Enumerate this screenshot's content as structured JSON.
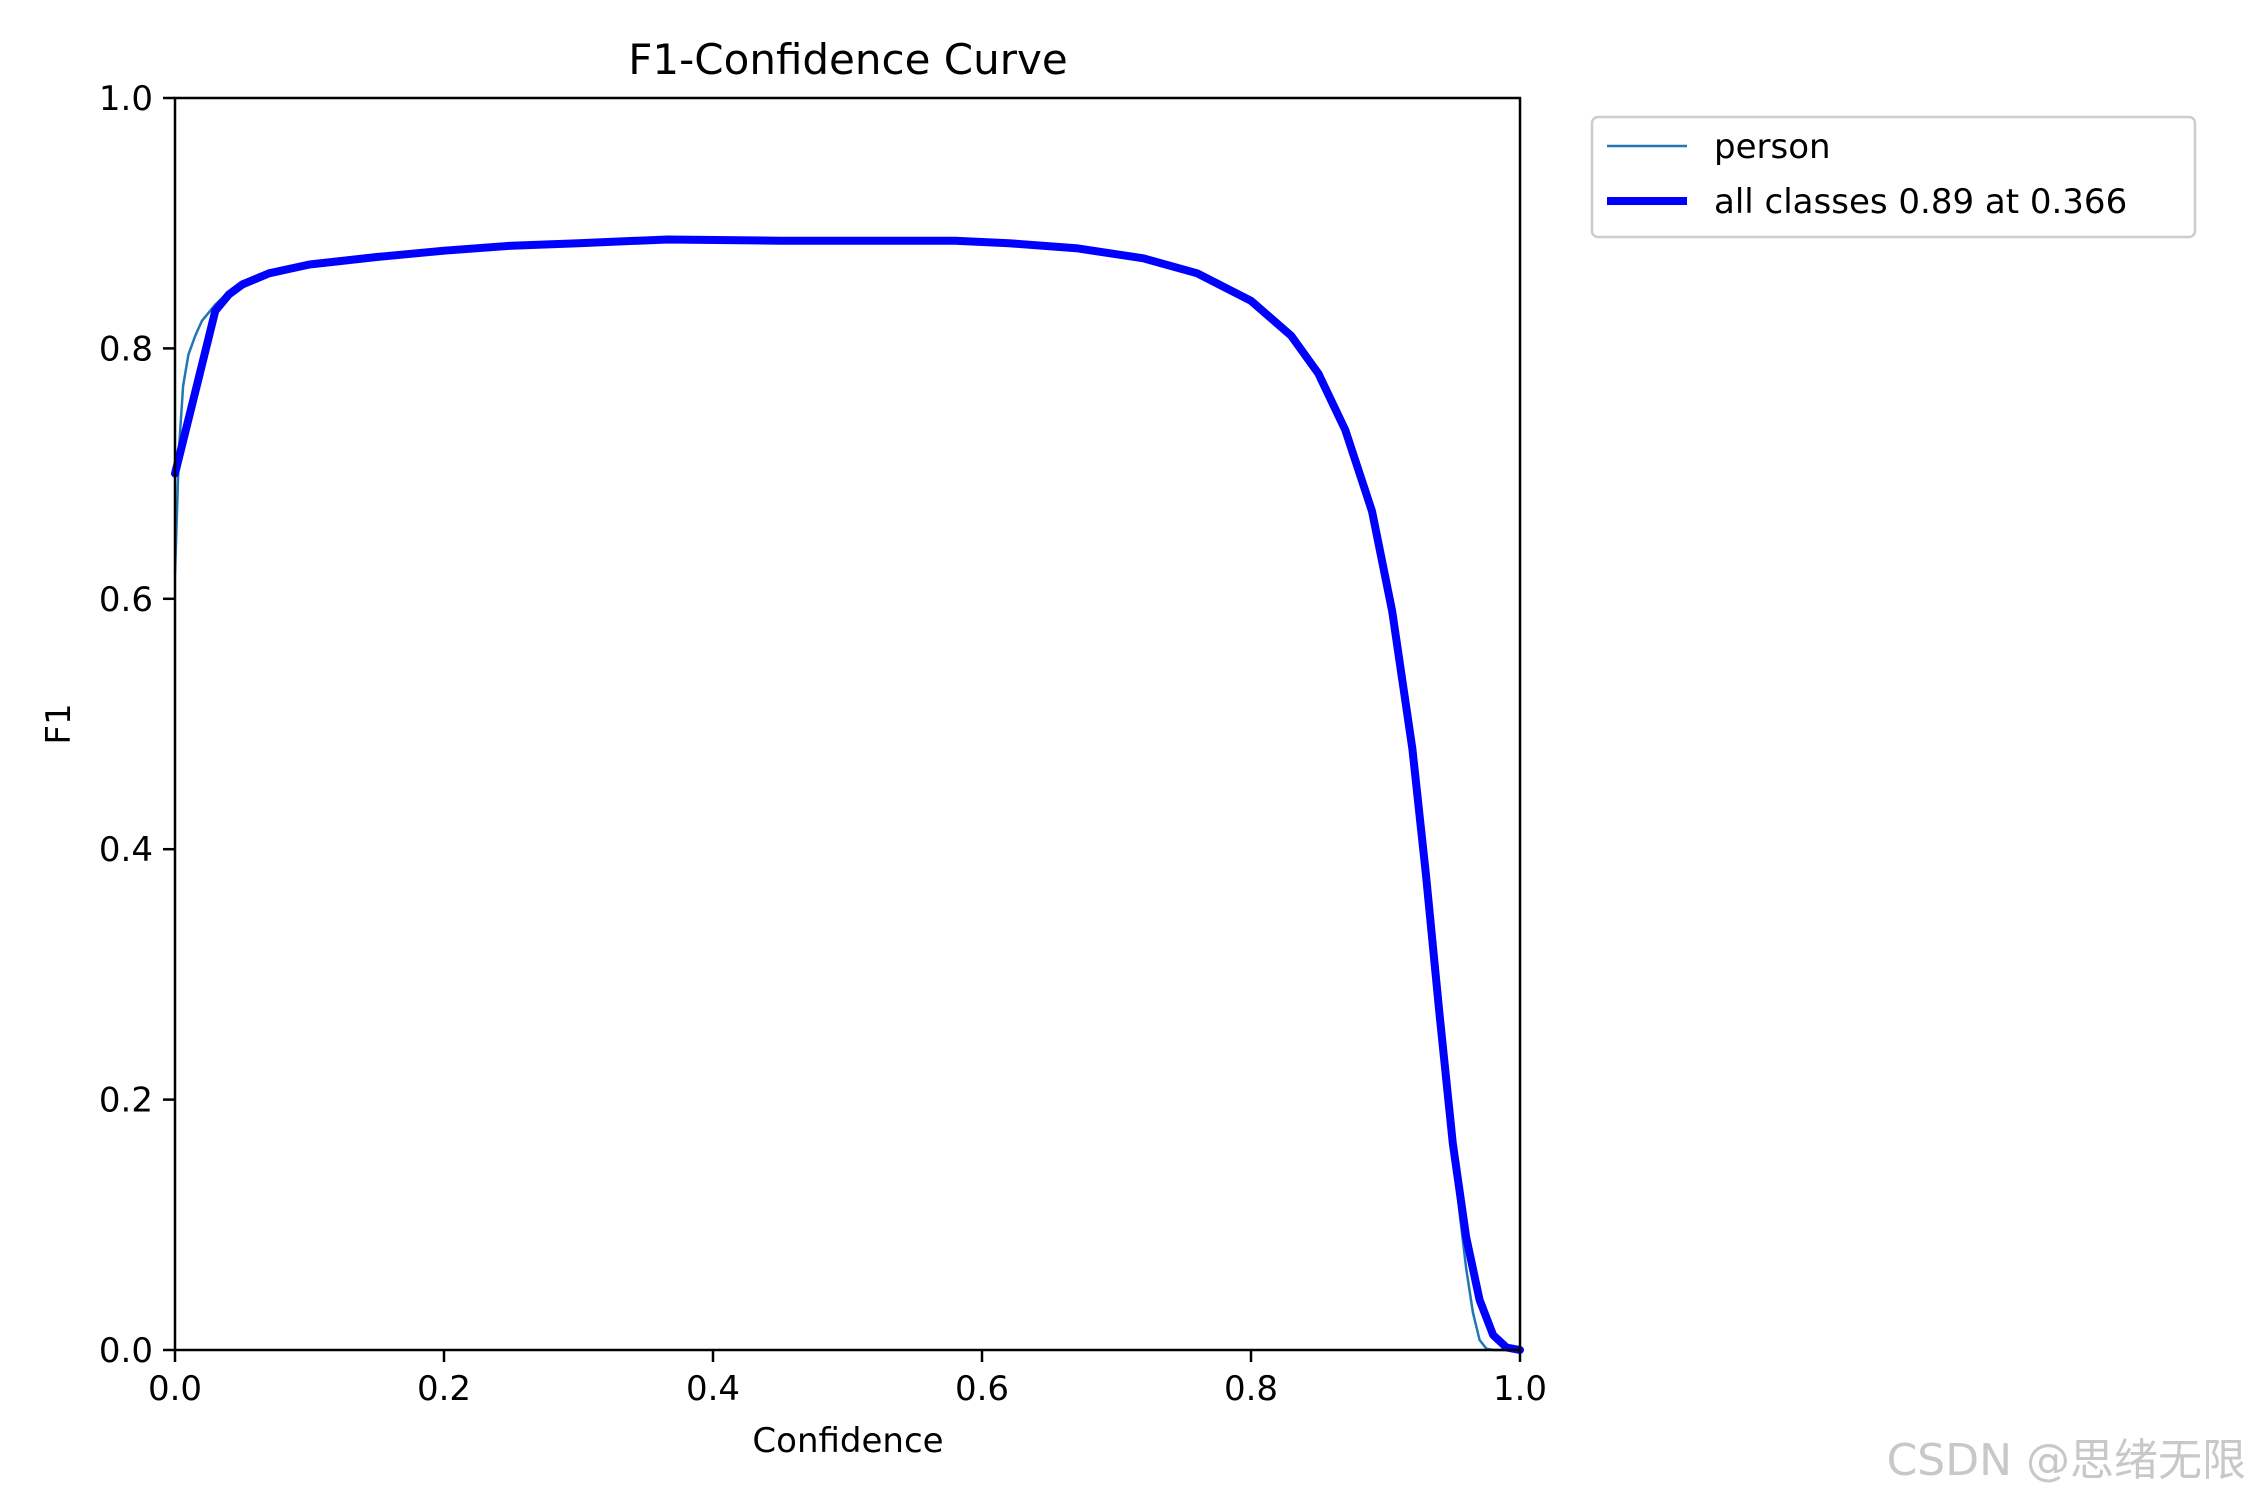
{
  "chart_data": {
    "type": "line",
    "title": "F1-Confidence Curve",
    "xlabel": "Confidence",
    "ylabel": "F1",
    "xlim": [
      0.0,
      1.0
    ],
    "ylim": [
      0.0,
      1.0
    ],
    "xticks": [
      "0.0",
      "0.2",
      "0.4",
      "0.6",
      "0.8",
      "1.0"
    ],
    "yticks": [
      "0.0",
      "0.2",
      "0.4",
      "0.6",
      "0.8",
      "1.0"
    ],
    "grid": false,
    "legend_position": "outside-top-right",
    "series": [
      {
        "name": "person",
        "color": "#1f77b4",
        "points": [
          [
            0.0,
            0.62
          ],
          [
            0.003,
            0.72
          ],
          [
            0.006,
            0.77
          ],
          [
            0.01,
            0.795
          ],
          [
            0.015,
            0.81
          ],
          [
            0.02,
            0.822
          ],
          [
            0.03,
            0.835
          ],
          [
            0.04,
            0.845
          ],
          [
            0.05,
            0.852
          ],
          [
            0.07,
            0.861
          ],
          [
            0.1,
            0.868
          ],
          [
            0.15,
            0.874
          ],
          [
            0.2,
            0.879
          ],
          [
            0.25,
            0.882
          ],
          [
            0.3,
            0.884
          ],
          [
            0.366,
            0.887
          ],
          [
            0.45,
            0.886
          ],
          [
            0.5,
            0.886
          ],
          [
            0.58,
            0.886
          ],
          [
            0.62,
            0.884
          ],
          [
            0.67,
            0.88
          ],
          [
            0.72,
            0.872
          ],
          [
            0.76,
            0.86
          ],
          [
            0.8,
            0.838
          ],
          [
            0.83,
            0.81
          ],
          [
            0.85,
            0.78
          ],
          [
            0.87,
            0.735
          ],
          [
            0.89,
            0.67
          ],
          [
            0.905,
            0.59
          ],
          [
            0.92,
            0.48
          ],
          [
            0.93,
            0.38
          ],
          [
            0.94,
            0.27
          ],
          [
            0.95,
            0.16
          ],
          [
            0.955,
            0.11
          ],
          [
            0.96,
            0.065
          ],
          [
            0.965,
            0.03
          ],
          [
            0.97,
            0.008
          ],
          [
            0.975,
            0.001
          ],
          [
            0.98,
            0.0
          ],
          [
            1.0,
            0.0
          ]
        ]
      },
      {
        "name": "all classes 0.89 at 0.366",
        "color": "#0000ff",
        "points": [
          [
            0.0,
            0.7
          ],
          [
            0.015,
            0.765
          ],
          [
            0.03,
            0.83
          ],
          [
            0.04,
            0.843
          ],
          [
            0.05,
            0.851
          ],
          [
            0.07,
            0.86
          ],
          [
            0.1,
            0.867
          ],
          [
            0.15,
            0.873
          ],
          [
            0.2,
            0.878
          ],
          [
            0.25,
            0.882
          ],
          [
            0.3,
            0.884
          ],
          [
            0.366,
            0.887
          ],
          [
            0.45,
            0.886
          ],
          [
            0.5,
            0.886
          ],
          [
            0.58,
            0.886
          ],
          [
            0.62,
            0.884
          ],
          [
            0.67,
            0.88
          ],
          [
            0.72,
            0.872
          ],
          [
            0.76,
            0.86
          ],
          [
            0.8,
            0.838
          ],
          [
            0.83,
            0.81
          ],
          [
            0.85,
            0.78
          ],
          [
            0.87,
            0.735
          ],
          [
            0.89,
            0.67
          ],
          [
            0.905,
            0.59
          ],
          [
            0.92,
            0.48
          ],
          [
            0.93,
            0.38
          ],
          [
            0.94,
            0.27
          ],
          [
            0.95,
            0.165
          ],
          [
            0.96,
            0.09
          ],
          [
            0.97,
            0.04
          ],
          [
            0.98,
            0.012
          ],
          [
            0.99,
            0.002
          ],
          [
            1.0,
            0.0
          ]
        ]
      }
    ]
  },
  "watermark": "CSDN @思绪无限"
}
